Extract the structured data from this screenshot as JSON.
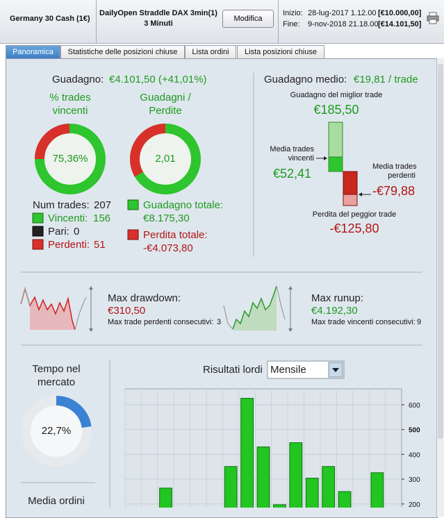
{
  "header": {
    "instrument": "Germany 30 Cash (1€)",
    "strategy": "DailyOpen Straddle DAX 3min(1)",
    "timeframe": "3 Minuti",
    "button": "Modifica",
    "start_label": "Inizio:",
    "start_date": "28-lug-2017 1.12.00",
    "start_capital": "[€10.000,00]",
    "end_label": "Fine:",
    "end_date": "9-nov-2018 21.18.00",
    "end_capital": "[€14.101,50]"
  },
  "tabs": [
    "Panoramica",
    "Statistiche delle posizioni chiuse",
    "Lista ordini",
    "Lista posizioni chiuse"
  ],
  "gain": {
    "label": "Guadagno:",
    "value": "€4.101,50 (+41,01%)"
  },
  "win_rate": {
    "title_1": "% trades",
    "title_2": "vincenti",
    "value": "75,36%"
  },
  "profit_factor": {
    "title_1": "Guadagni /",
    "title_2": "Perdite",
    "value": "2,01"
  },
  "trades": {
    "num_label": "Num trades:",
    "num": "207",
    "win_label": "Vincenti:",
    "win": "156",
    "even_label": "Pari:",
    "even": "0",
    "loss_label": "Perdenti:",
    "loss": "51"
  },
  "totals": {
    "gain_label": "Guadagno totale:",
    "gain": "€8.175,30",
    "loss_label": "Perdita totale:",
    "loss": "-€4.073,80"
  },
  "average": {
    "label": "Guadagno medio:",
    "value": "€19,81 / trade",
    "best_label": "Guadagno del miglior trade",
    "best": "€185,50",
    "avg_win_label_1": "Media trades",
    "avg_win_label_2": "vincenti",
    "avg_win": "€52,41",
    "avg_loss_label_1": "Media trades",
    "avg_loss_label_2": "perdenti",
    "avg_loss": "-€79,88",
    "worst_label": "Perdita del peggior trade",
    "worst": "-€125,80"
  },
  "drawdown": {
    "label": "Max drawdown:",
    "value": "€310,50",
    "consec_label": "Max trade perdenti consecutivi:",
    "consec": "3"
  },
  "runup": {
    "label": "Max runup:",
    "value": "€4.192,30",
    "consec_label": "Max trade vincenti consecutivi:",
    "consec": "9"
  },
  "market_time": {
    "title_1": "Tempo nel",
    "title_2": "mercato",
    "value": "22,7%"
  },
  "orders": {
    "title": "Media ordini"
  },
  "chart_data": {
    "type": "bar",
    "title": "Risultati lordi",
    "period": "Mensile",
    "categories": [
      null,
      null,
      null,
      null,
      null,
      null,
      null,
      null,
      null,
      null,
      null,
      null,
      null,
      null,
      null,
      null,
      null
    ],
    "values": [
      null,
      null,
      264,
      null,
      null,
      null,
      351,
      626,
      430,
      197,
      447,
      304,
      351,
      250,
      null,
      326,
      null
    ],
    "color": "#22c522",
    "ylim": [
      100,
      664
    ],
    "yticks": [
      200,
      300,
      400,
      500,
      600
    ],
    "grid": true
  }
}
